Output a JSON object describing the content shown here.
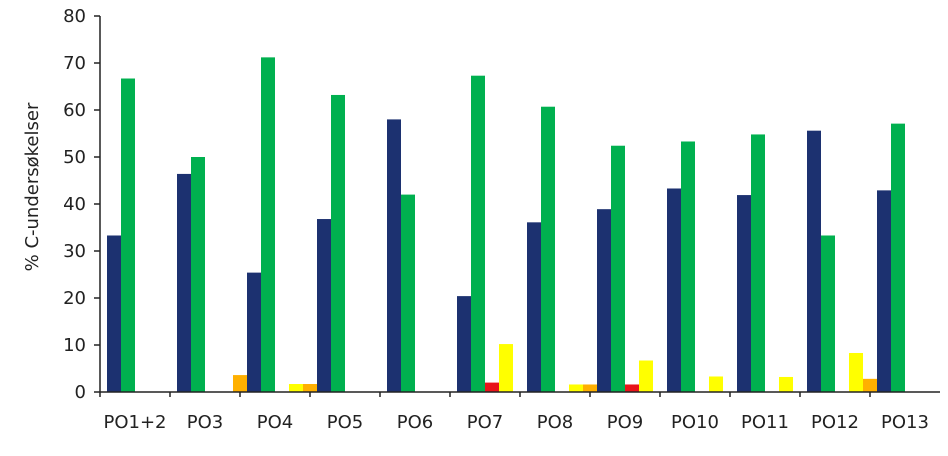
{
  "chart_data": {
    "type": "bar",
    "title": "",
    "xlabel": "",
    "ylabel": "% C-undersøkelser",
    "ylim": [
      0,
      80
    ],
    "yticks": [
      0,
      10,
      20,
      30,
      40,
      50,
      60,
      70,
      80
    ],
    "grid": false,
    "legend": "none",
    "categories": [
      "PO1+2",
      "PO3",
      "PO4",
      "PO5",
      "PO6",
      "PO7",
      "PO8",
      "PO9",
      "PO10",
      "PO11",
      "PO12",
      "PO13"
    ],
    "series": [
      {
        "color": "#1c3170",
        "values": [
          33.3,
          46.4,
          25.4,
          36.8,
          58.0,
          20.4,
          36.1,
          38.9,
          43.3,
          41.9,
          55.6,
          42.9
        ]
      },
      {
        "color": "#00b04f",
        "values": [
          66.7,
          50.0,
          71.2,
          63.2,
          42.0,
          67.3,
          60.7,
          52.4,
          53.3,
          54.8,
          33.3,
          57.1
        ]
      },
      {
        "color": "#e8141a",
        "values": [
          0,
          0,
          0,
          0,
          0,
          2.0,
          0,
          1.6,
          0,
          0,
          0,
          0
        ]
      },
      {
        "color": "#ffff00",
        "values": [
          0,
          0,
          1.7,
          0,
          0,
          10.2,
          1.6,
          6.7,
          3.3,
          3.2,
          8.3,
          0
        ]
      },
      {
        "color": "#ffb000",
        "values": [
          0,
          3.6,
          1.7,
          0,
          0,
          0,
          1.6,
          0,
          0,
          0,
          2.8,
          0
        ]
      }
    ]
  }
}
